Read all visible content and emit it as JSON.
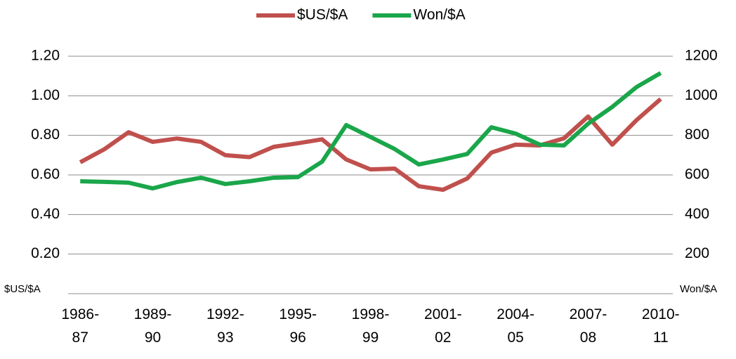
{
  "chart_data": {
    "type": "line",
    "categories": [
      "1986-\n87",
      null,
      null,
      "1989-\n90",
      null,
      null,
      "1992-\n93",
      null,
      null,
      "1995-\n96",
      null,
      null,
      "1998-\n99",
      null,
      null,
      "2001-\n02",
      null,
      null,
      "2004-\n05",
      null,
      null,
      "2007-\n08",
      null,
      null,
      "2010-\n11"
    ],
    "series": [
      {
        "name": "$US/$A",
        "color": "#c0504d",
        "values": [
          0.664,
          0.73,
          0.816,
          0.767,
          0.784,
          0.767,
          0.7,
          0.69,
          0.742,
          0.76,
          0.78,
          0.678,
          0.628,
          0.632,
          0.543,
          0.525,
          0.582,
          0.713,
          0.753,
          0.749,
          0.785,
          0.895,
          0.753,
          0.877,
          0.984
        ]
      },
      {
        "name": "Won/$A",
        "color": "#1aa64a",
        "axis": "y2",
        "values": [
          568,
          565,
          561,
          532,
          564,
          586,
          554,
          568,
          586,
          589,
          667,
          852,
          792,
          731,
          653,
          678,
          706,
          841,
          809,
          753,
          749,
          859,
          944,
          1044,
          1115
        ]
      }
    ],
    "ylabel": "$US/$A",
    "y2label": "Won/$A",
    "ylim": [
      0,
      1.2
    ],
    "yticks": [
      {
        "value": 0.2,
        "label": "0.20"
      },
      {
        "value": 0.4,
        "label": "0.40"
      },
      {
        "value": 0.6,
        "label": "0.60"
      },
      {
        "value": 0.8,
        "label": "0.80"
      },
      {
        "value": 1.0,
        "label": "1.00"
      },
      {
        "value": 1.2,
        "label": "1.20"
      }
    ],
    "y2lim": [
      0,
      1200
    ],
    "y2ticks": [
      200,
      400,
      600,
      800,
      1000,
      1200
    ],
    "grid": true,
    "legend": "top"
  }
}
